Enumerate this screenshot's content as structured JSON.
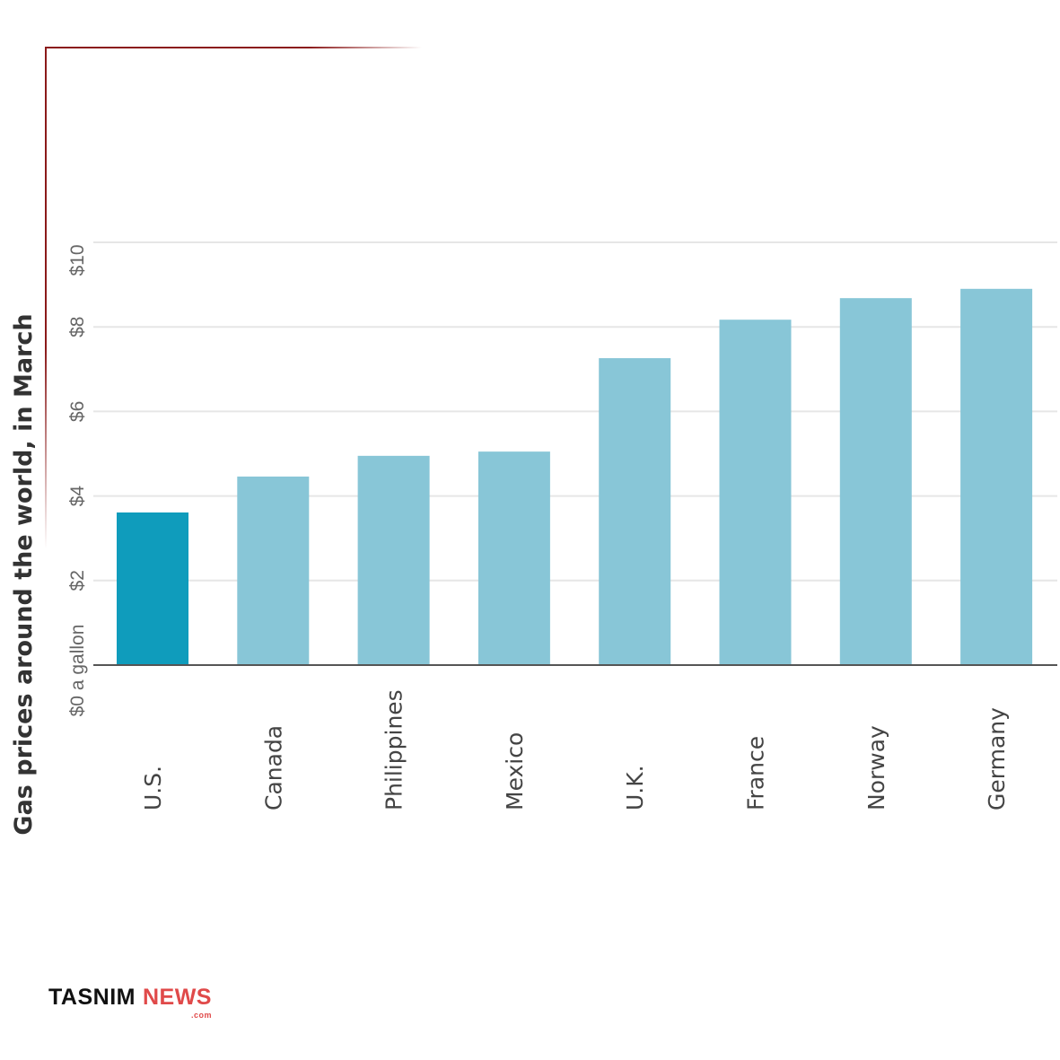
{
  "chart_data": {
    "type": "bar",
    "title": "Gas prices around the world, in March",
    "xlabel": "",
    "ylabel": "",
    "categories": [
      "U.S.",
      "Canada",
      "Philippines",
      "Mexico",
      "U.K.",
      "France",
      "Norway",
      "Germany"
    ],
    "values": [
      3.61,
      4.46,
      4.95,
      5.05,
      7.26,
      8.17,
      8.68,
      8.9
    ],
    "highlight": "U.S.",
    "ylim": [
      0,
      10
    ],
    "yticks": [
      0,
      2,
      4,
      6,
      8,
      10
    ],
    "ytick_labels": [
      "$0 a gallon",
      "$2",
      "$4",
      "$6",
      "$8",
      "$10"
    ],
    "grid": true,
    "colors": {
      "highlight": "#0f9cbc",
      "default": "#88c6d7",
      "baseline": "#555555",
      "grid": "#e6e6e6",
      "frame": "#8b1a1a"
    }
  },
  "logo": {
    "brand": "TASNIM",
    "accent": "NEWS",
    "suffix": ".com"
  }
}
